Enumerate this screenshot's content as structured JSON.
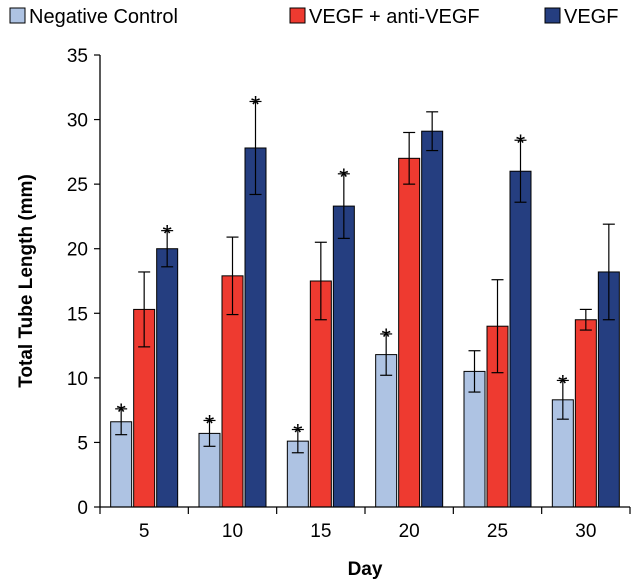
{
  "chart_data": {
    "type": "bar",
    "categories": [
      "5",
      "10",
      "15",
      "20",
      "25",
      "30"
    ],
    "series": [
      {
        "name": "Negative Control",
        "color": "#aec3e3",
        "values": [
          6.6,
          5.7,
          5.1,
          11.8,
          10.5,
          8.3
        ],
        "errors": [
          1.0,
          1.0,
          0.9,
          1.6,
          1.6,
          1.5
        ],
        "significant": [
          true,
          true,
          true,
          true,
          false,
          true
        ]
      },
      {
        "name": "VEGF + anti-VEGF",
        "color": "#ee3a30",
        "values": [
          15.3,
          17.9,
          17.5,
          27.0,
          14.0,
          14.5
        ],
        "errors": [
          2.9,
          3.0,
          3.0,
          2.0,
          3.6,
          0.8
        ],
        "significant": [
          false,
          false,
          false,
          false,
          false,
          false
        ]
      },
      {
        "name": "VEGF",
        "color": "#253e80",
        "values": [
          20.0,
          27.8,
          23.3,
          29.1,
          26.0,
          18.2
        ],
        "errors": [
          1.4,
          3.6,
          2.5,
          1.5,
          2.4,
          3.7
        ],
        "significant": [
          true,
          true,
          true,
          false,
          true,
          false
        ]
      }
    ],
    "xlabel": "Day",
    "ylabel": "Total Tube Length (mm)",
    "ylim": [
      0,
      35
    ],
    "yticks": [
      "0",
      "5",
      "10",
      "15",
      "20",
      "25",
      "30",
      "35"
    ],
    "significance_marker": "*",
    "legend_position": "top",
    "grid": false
  }
}
